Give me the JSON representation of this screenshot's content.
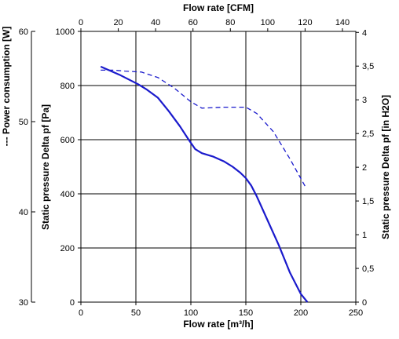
{
  "chart_data": {
    "type": "line",
    "x_bottom": {
      "label": "Flow rate [m³/h]",
      "range": [
        0,
        250
      ],
      "ticks": [
        "0",
        "50",
        "100",
        "150",
        "200",
        "250"
      ]
    },
    "x_top": {
      "label": "Flow rate [CFM]",
      "range": [
        0,
        147.15
      ],
      "ticks": [
        "0",
        "20",
        "40",
        "60",
        "80",
        "100",
        "120",
        "140"
      ]
    },
    "y_left_outer": {
      "label": "--- Power consumption [W]",
      "range": [
        30,
        60
      ],
      "ticks": [
        "30",
        "40",
        "50",
        "60"
      ]
    },
    "y_left_main": {
      "label": "Static pressure Delta pf [Pa]",
      "range": [
        0,
        1000
      ],
      "ticks": [
        "0",
        "200",
        "400",
        "600",
        "800",
        "1000"
      ]
    },
    "y_right": {
      "label": "Static pressure Delta pf [in H2O]",
      "range": [
        0,
        4.0147
      ],
      "ticks": [
        "0",
        "0,5",
        "1",
        "1,5",
        "2",
        "2,5",
        "3",
        "3,5",
        "4"
      ]
    },
    "grid": true,
    "series": [
      {
        "style": "solid",
        "color": "#1a1acc",
        "axis": "y_left_main",
        "x": [
          18,
          35,
          52,
          60,
          70,
          80,
          90,
          98,
          104,
          110,
          120,
          130,
          138,
          145,
          150,
          155,
          160,
          170,
          180,
          190,
          200,
          206
        ],
        "y": [
          870,
          840,
          805,
          785,
          755,
          705,
          650,
          600,
          565,
          550,
          538,
          520,
          500,
          478,
          458,
          430,
          390,
          300,
          210,
          110,
          30,
          0
        ]
      },
      {
        "style": "dashed",
        "color": "#1a1acc",
        "axis": "y_left_outer",
        "x": [
          18,
          30,
          40,
          55,
          70,
          85,
          100,
          110,
          130,
          150,
          160,
          175,
          190,
          205
        ],
        "y": [
          55.7,
          55.7,
          55.6,
          55.5,
          54.9,
          53.7,
          52.2,
          51.5,
          51.6,
          51.6,
          50.9,
          48.9,
          45.9,
          42.6
        ]
      }
    ]
  }
}
